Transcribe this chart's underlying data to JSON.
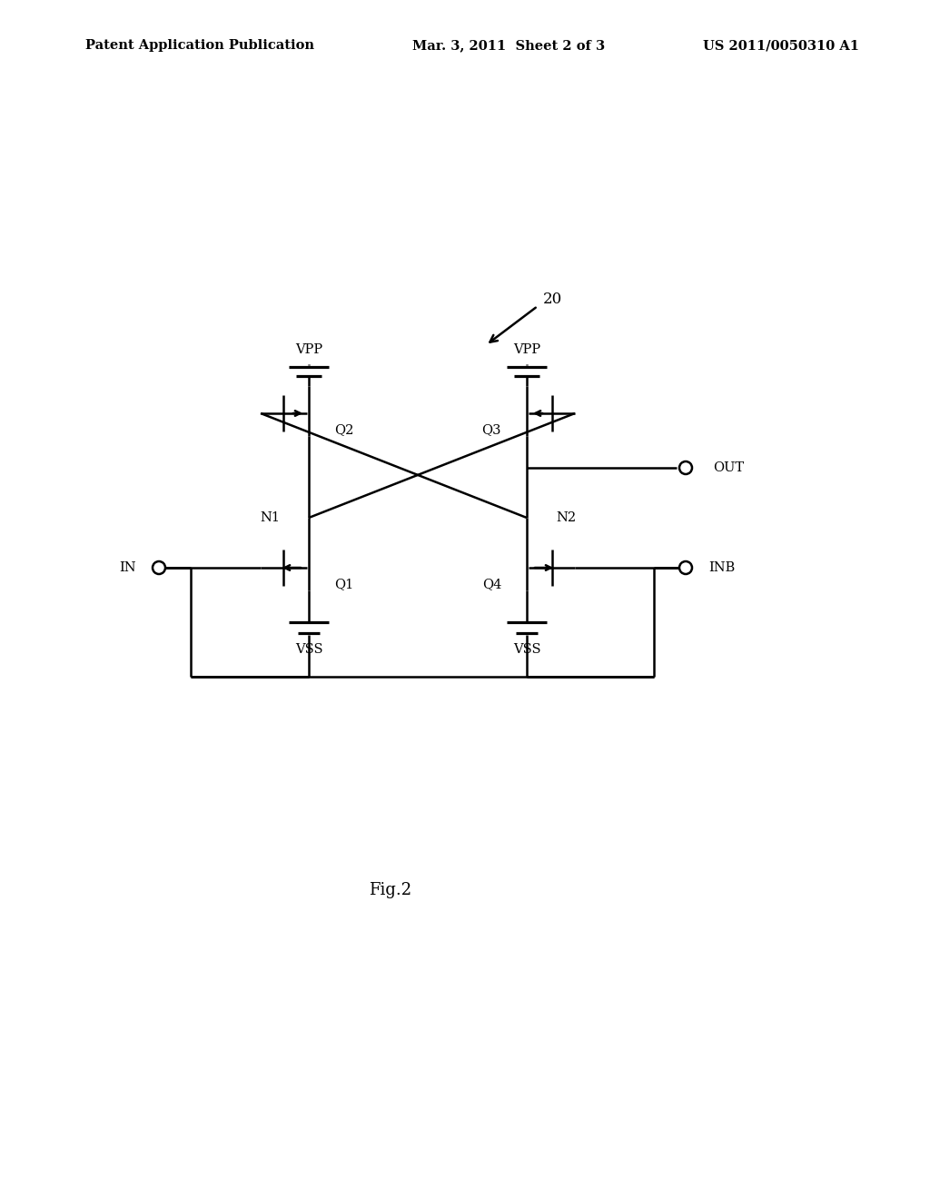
{
  "background_color": "#ffffff",
  "line_color": "#000000",
  "header_left": "Patent Application Publication",
  "header_mid": "Mar. 3, 2011  Sheet 2 of 3",
  "header_right": "US 2011/0050310 A1",
  "fig_label": "Fig.2",
  "circuit_ref": "20",
  "header_fontsize": 10.5,
  "label_fontsize": 10.5,
  "fig_label_fontsize": 13
}
